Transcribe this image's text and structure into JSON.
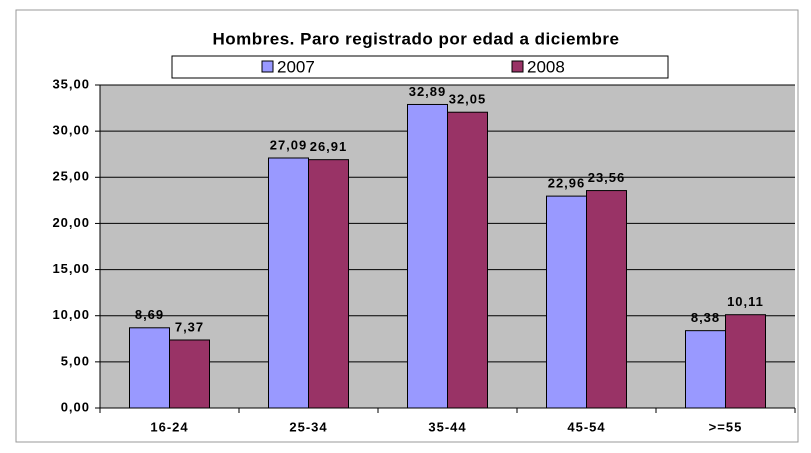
{
  "chart_data": {
    "type": "bar",
    "title": "Hombres. Paro registrado por edad a diciembre",
    "categories": [
      "16-24",
      "25-34",
      "35-44",
      "45-54",
      ">=55"
    ],
    "series": [
      {
        "name": "2007",
        "color": "#9999ff",
        "values": [
          8.69,
          27.09,
          32.89,
          22.96,
          8.38
        ],
        "value_labels": [
          "8,69",
          "27,09",
          "32,89",
          "22,96",
          "8,38"
        ]
      },
      {
        "name": "2008",
        "color": "#993366",
        "values": [
          7.37,
          26.91,
          32.05,
          23.56,
          10.11
        ],
        "value_labels": [
          "7,37",
          "26,91",
          "32,05",
          "23,56",
          "10,11"
        ]
      }
    ],
    "ylim": [
      0,
      35
    ],
    "yticks": [
      {
        "value": 0,
        "label": "0,00"
      },
      {
        "value": 5,
        "label": "5,00"
      },
      {
        "value": 10,
        "label": "10,00"
      },
      {
        "value": 15,
        "label": "15,00"
      },
      {
        "value": 20,
        "label": "20,00"
      },
      {
        "value": 25,
        "label": "25,00"
      },
      {
        "value": 30,
        "label": "30,00"
      },
      {
        "value": 35,
        "label": "35,00"
      }
    ],
    "grid": true,
    "legend": "top"
  }
}
